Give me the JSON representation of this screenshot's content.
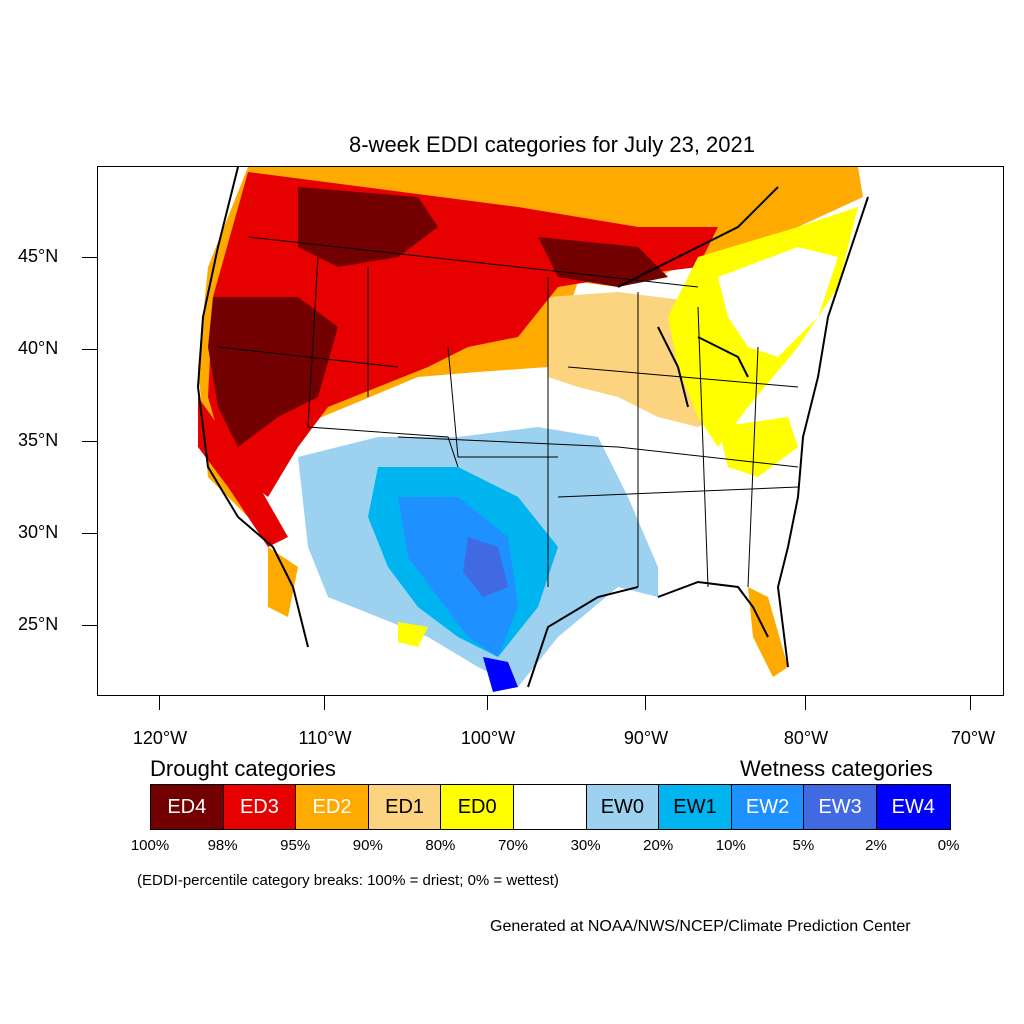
{
  "title": "8-week EDDI categories for July 23, 2021",
  "lat_labels": [
    "45°N",
    "40°N",
    "35°N",
    "30°N",
    "25°N"
  ],
  "lon_labels": [
    "120°W",
    "110°W",
    "100°W",
    "90°W",
    "80°W",
    "70°W"
  ],
  "legend": {
    "drought_label": "Drought categories",
    "wetness_label": "Wetness categories",
    "categories": [
      {
        "label": "ED4",
        "color": "#730000",
        "text_color": "#ffffff"
      },
      {
        "label": "ED3",
        "color": "#e60000",
        "text_color": "#ffffff"
      },
      {
        "label": "ED2",
        "color": "#ffaa00",
        "text_color": "#ffffff"
      },
      {
        "label": "ED1",
        "color": "#fcd37f",
        "text_color": "#000000"
      },
      {
        "label": "ED0",
        "color": "#ffff00",
        "text_color": "#000000"
      },
      {
        "label": "",
        "color": "#ffffff",
        "text_color": "#000000"
      },
      {
        "label": "EW0",
        "color": "#9dd1f0",
        "text_color": "#000000"
      },
      {
        "label": "EW1",
        "color": "#00b4f0",
        "text_color": "#000000"
      },
      {
        "label": "EW2",
        "color": "#1e90ff",
        "text_color": "#ffffff"
      },
      {
        "label": "EW3",
        "color": "#4169e1",
        "text_color": "#ffffff"
      },
      {
        "label": "EW4",
        "color": "#0000ff",
        "text_color": "#ffffff"
      }
    ],
    "percent_breaks": [
      "100%",
      "98%",
      "95%",
      "90%",
      "80%",
      "70%",
      "30%",
      "20%",
      "10%",
      "5%",
      "2%",
      "0%"
    ]
  },
  "note": "(EDDI-percentile category breaks: 100% = driest; 0% = wettest)",
  "credit": "Generated at NOAA/NWS/NCEP/Climate Prediction Center"
}
